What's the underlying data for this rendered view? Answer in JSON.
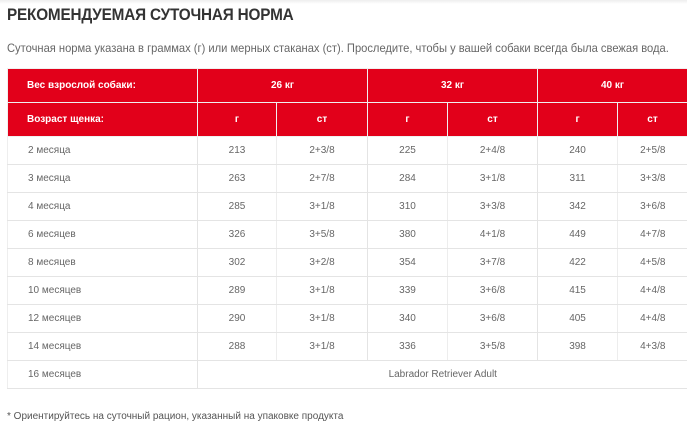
{
  "title": "РЕКОМЕНДУЕМАЯ СУТОЧНАЯ НОРМА",
  "subtitle": "Суточная норма указана в граммах (г) или мерных стаканах (ст). Проследите, чтобы у вашей собаки всегда была свежая вода.",
  "accent_color": "#e2001a",
  "table": {
    "weight_label": "Вес взрослой собаки:",
    "weights": [
      "26 кг",
      "32 кг",
      "40 кг"
    ],
    "age_label": "Возраст щенка:",
    "units": [
      "г",
      "ст",
      "г",
      "ст",
      "г",
      "ст"
    ],
    "rows": [
      {
        "age": "2 месяца",
        "values": [
          "213",
          "2+3/8",
          "225",
          "2+4/8",
          "240",
          "2+5/8"
        ]
      },
      {
        "age": "3 месяца",
        "values": [
          "263",
          "2+7/8",
          "284",
          "3+1/8",
          "311",
          "3+3/8"
        ]
      },
      {
        "age": "4 месяца",
        "values": [
          "285",
          "3+1/8",
          "310",
          "3+3/8",
          "342",
          "3+6/8"
        ]
      },
      {
        "age": "6 месяцев",
        "values": [
          "326",
          "3+5/8",
          "380",
          "4+1/8",
          "449",
          "4+7/8"
        ]
      },
      {
        "age": "8 месяцев",
        "values": [
          "302",
          "3+2/8",
          "354",
          "3+7/8",
          "422",
          "4+5/8"
        ]
      },
      {
        "age": "10 месяцев",
        "values": [
          "289",
          "3+1/8",
          "339",
          "3+6/8",
          "415",
          "4+4/8"
        ]
      },
      {
        "age": "12 месяцев",
        "values": [
          "290",
          "3+1/8",
          "340",
          "3+6/8",
          "405",
          "4+4/8"
        ]
      },
      {
        "age": "14 месяцев",
        "values": [
          "288",
          "3+1/8",
          "336",
          "3+5/8",
          "398",
          "4+3/8"
        ]
      }
    ],
    "last_row": {
      "age": "16 месяцев",
      "product": "Labrador Retriever Adult"
    }
  },
  "footnote": "* Ориентируйтесь на суточный рацион, указанный на упаковке продукта"
}
